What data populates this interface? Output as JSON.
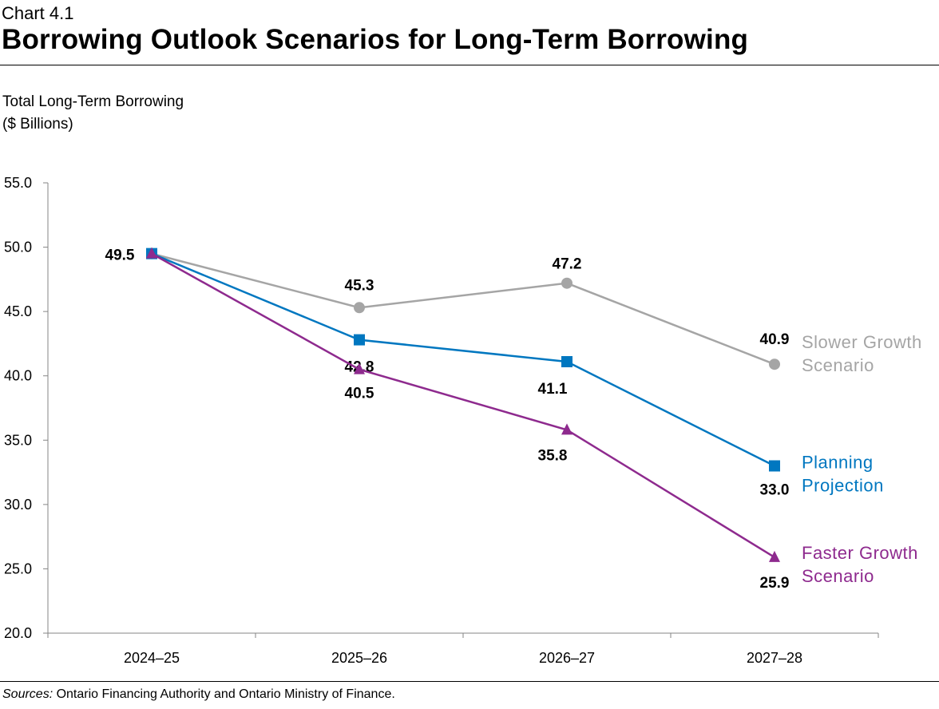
{
  "header": {
    "chart_number": "Chart 4.1",
    "title": "Borrowing Outlook Scenarios for Long-Term Borrowing"
  },
  "footer": {
    "sources_label": "Sources:",
    "sources_text": " Ontario Financing Authority and Ontario Ministry of Finance."
  },
  "chart_data": {
    "type": "line",
    "title": "Borrowing Outlook Scenarios for Long-Term Borrowing",
    "ylabel": [
      "Total Long-Term Borrowing",
      "($ Billions)"
    ],
    "xlabel": "",
    "categories": [
      "2024–25",
      "2025–26",
      "2026–27",
      "2027–28"
    ],
    "ylim": [
      20,
      55
    ],
    "yticks": [
      "20.0",
      "25.0",
      "30.0",
      "35.0",
      "40.0",
      "45.0",
      "50.0",
      "55.0"
    ],
    "grid": false,
    "series": [
      {
        "name": "Slower Growth Scenario",
        "label_lines": [
          "Slower Growth",
          "Scenario"
        ],
        "values": [
          49.5,
          45.3,
          47.2,
          40.9
        ],
        "color": "#A5A5A5",
        "marker": "circle"
      },
      {
        "name": "Planning Projection",
        "label_lines": [
          "Planning",
          "Projection"
        ],
        "values": [
          49.5,
          42.8,
          41.1,
          33.0
        ],
        "color": "#0077C0",
        "marker": "square"
      },
      {
        "name": "Faster Growth Scenario",
        "label_lines": [
          "Faster Growth",
          "Scenario"
        ],
        "values": [
          49.5,
          40.5,
          35.8,
          25.9
        ],
        "color": "#8E2A8E",
        "marker": "triangle"
      }
    ]
  }
}
